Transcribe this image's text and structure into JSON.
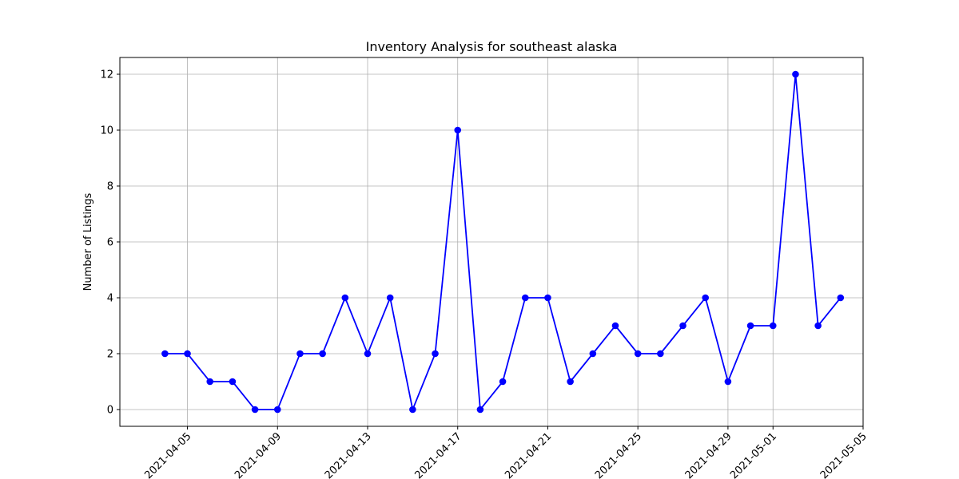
{
  "chart_data": {
    "type": "line",
    "title": "Inventory Analysis for southeast alaska",
    "xlabel": "",
    "ylabel": "Number of Listings",
    "x": [
      "2021-04-04",
      "2021-04-05",
      "2021-04-06",
      "2021-04-07",
      "2021-04-08",
      "2021-04-09",
      "2021-04-10",
      "2021-04-11",
      "2021-04-12",
      "2021-04-13",
      "2021-04-14",
      "2021-04-15",
      "2021-04-16",
      "2021-04-17",
      "2021-04-18",
      "2021-04-19",
      "2021-04-20",
      "2021-04-21",
      "2021-04-22",
      "2021-04-23",
      "2021-04-24",
      "2021-04-25",
      "2021-04-26",
      "2021-04-27",
      "2021-04-28",
      "2021-04-29",
      "2021-04-30",
      "2021-05-01",
      "2021-05-02",
      "2021-05-03",
      "2021-05-04"
    ],
    "series": [
      {
        "values": [
          2,
          2,
          1,
          1,
          0,
          0,
          2,
          2,
          4,
          2,
          4,
          0,
          2,
          10,
          0,
          1,
          4,
          4,
          1,
          2,
          3,
          2,
          2,
          3,
          4,
          1,
          3,
          3,
          12,
          3,
          4
        ],
        "color": "#0000ff",
        "marker": "circle"
      }
    ],
    "xticks": [
      "2021-04-05",
      "2021-04-09",
      "2021-04-13",
      "2021-04-17",
      "2021-04-21",
      "2021-04-25",
      "2021-04-29",
      "2021-05-01",
      "2021-05-05"
    ],
    "yticks": [
      0,
      2,
      4,
      6,
      8,
      10,
      12
    ],
    "xlim": [
      "2021-04-02",
      "2021-05-05"
    ],
    "ylim": [
      -0.6,
      12.6
    ],
    "grid": true,
    "xtick_rotation": 45
  }
}
